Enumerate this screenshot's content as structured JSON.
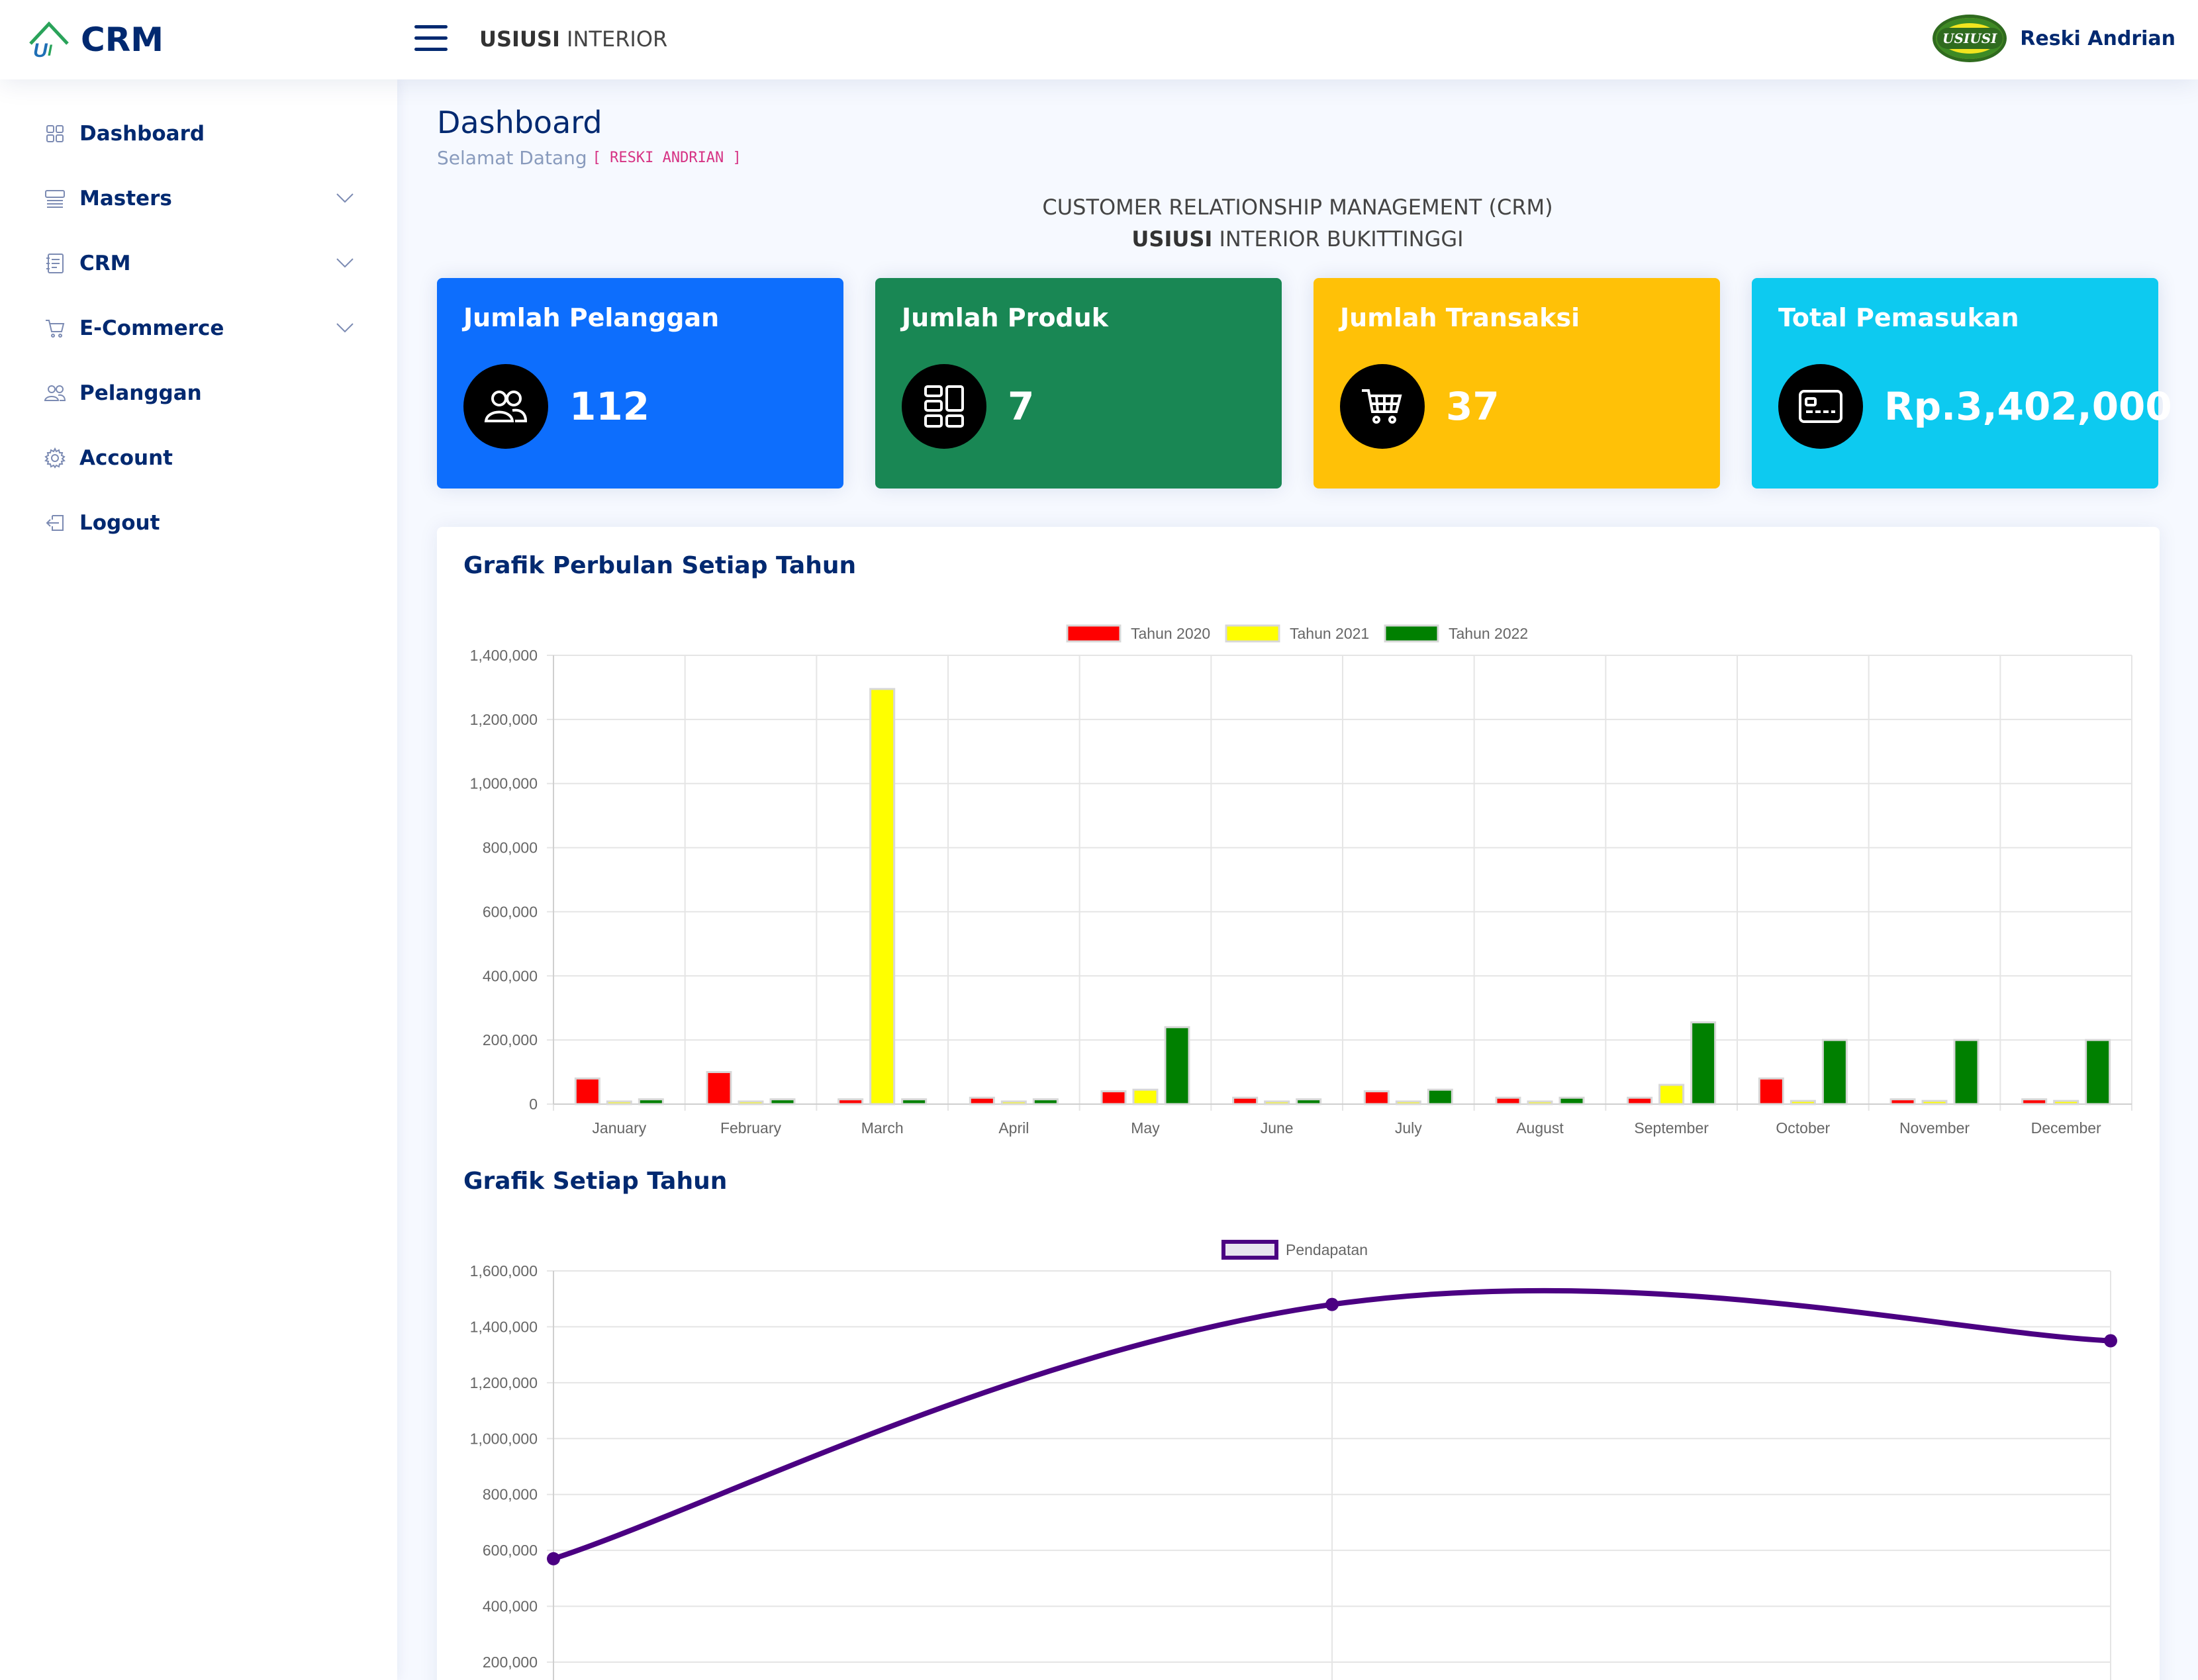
{
  "header": {
    "logo_text": "CRM",
    "brand_bold": "USIUSI",
    "brand_rest": " INTERIOR",
    "user_name": "Reski Andrian",
    "avatar_text": "USIUSI"
  },
  "sidebar": {
    "items": [
      {
        "label": "Dashboard",
        "icon": "grid-icon",
        "expandable": false
      },
      {
        "label": "Masters",
        "icon": "menu-button-icon",
        "expandable": true
      },
      {
        "label": "CRM",
        "icon": "journal-text-icon",
        "expandable": true
      },
      {
        "label": "E-Commerce",
        "icon": "cart-icon",
        "expandable": true
      },
      {
        "label": "Pelanggan",
        "icon": "people-icon",
        "expandable": false
      },
      {
        "label": "Account",
        "icon": "gear-icon",
        "expandable": false
      },
      {
        "label": "Logout",
        "icon": "box-arrow-in-left-icon",
        "expandable": false
      }
    ]
  },
  "page": {
    "title": "Dashboard",
    "welcome": "Selamat Datang",
    "welcome_user": "[ RESKI ANDRIAN ]",
    "crm_line1": "CUSTOMER RELATIONSHIP MANAGEMENT (CRM)",
    "crm_bold": "USIUSI",
    "crm_rest": " INTERIOR BUKITTINGGI"
  },
  "cards": [
    {
      "title": "Jumlah Pelanggan",
      "value": "112",
      "icon": "people-icon",
      "color": "#0d6efd"
    },
    {
      "title": "Jumlah Produk",
      "value": "7",
      "icon": "layout-icon",
      "color": "#198754"
    },
    {
      "title": "Jumlah Transaksi",
      "value": "37",
      "icon": "cart-icon",
      "color": "#ffc107"
    },
    {
      "title": "Total Pemasukan",
      "value": "Rp.3,402,000",
      "icon": "credit-card-icon",
      "color": "#0dcaf0"
    }
  ],
  "charts": {
    "monthly_title": "Grafik Perbulan Setiap Tahun",
    "yearly_title": "Grafik Setiap Tahun"
  },
  "chart_data": [
    {
      "type": "bar",
      "title": "Grafik Perbulan Setiap Tahun",
      "categories": [
        "January",
        "February",
        "March",
        "April",
        "May",
        "June",
        "July",
        "August",
        "September",
        "October",
        "November",
        "December"
      ],
      "series": [
        {
          "name": "Tahun 2020",
          "color": "#ff0000",
          "values": [
            80000,
            100000,
            15000,
            20000,
            40000,
            20000,
            40000,
            20000,
            20000,
            80000,
            15000,
            15000
          ]
        },
        {
          "name": "Tahun 2021",
          "color": "#ffff00",
          "values": [
            5000,
            0,
            1295000,
            0,
            45000,
            5000,
            5000,
            5000,
            60000,
            10000,
            10000,
            10000
          ]
        },
        {
          "name": "Tahun 2022",
          "color": "#008000",
          "values": [
            15000,
            15000,
            15000,
            15000,
            240000,
            15000,
            45000,
            20000,
            255000,
            200000,
            200000,
            200000
          ]
        }
      ],
      "ylim": [
        0,
        1400000
      ],
      "yticks": [
        "0",
        "200,000",
        "400,000",
        "600,000",
        "800,000",
        "1,000,000",
        "1,200,000",
        "1,400,000"
      ],
      "legend": "top-center",
      "grid": true
    },
    {
      "type": "line",
      "title": "Grafik Setiap Tahun",
      "series": [
        {
          "name": "Pendapatan",
          "color": "#4b0082",
          "values": [
            570000,
            1480000,
            1350000
          ]
        }
      ],
      "ylim": [
        200000,
        1600000
      ],
      "yticks": [
        "200,000",
        "400,000",
        "600,000",
        "800,000",
        "1,000,000",
        "1,200,000",
        "1,400,000",
        "1,600,000"
      ],
      "legend": "top-center",
      "grid": true
    }
  ]
}
